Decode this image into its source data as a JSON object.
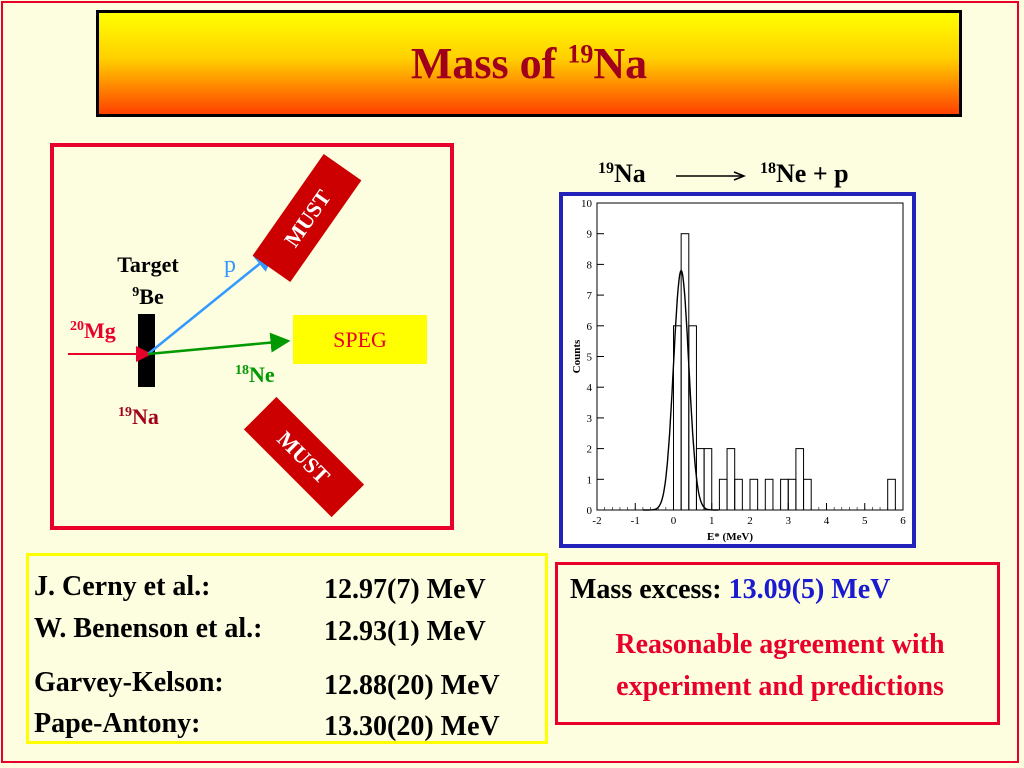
{
  "title": {
    "text": "Mass of ",
    "sup": "19",
    "element": "Na"
  },
  "reaction": {
    "parent_sup": "19",
    "parent": "Na",
    "arrow": "⟶",
    "daughter_sup": "18",
    "daughter": "Ne + p"
  },
  "diagram": {
    "target_label": "Target",
    "target_material_sup": "9",
    "target_material": "Be",
    "beam_sup": "20",
    "beam": "Mg",
    "product_sup": "19",
    "product": "Na",
    "proton_label": "p",
    "recoil_sup": "18",
    "recoil": "Ne",
    "spectrometer": "SPEG",
    "detector_top": "MUST",
    "detector_bottom": "MUST",
    "colors": {
      "frame": "#e8002a",
      "beam": "#e8002a",
      "proton": "#3399ff",
      "recoil": "#009900",
      "spectrometer_fill": "#ffff00",
      "detector_fill": "#cc0000"
    }
  },
  "chart_data": {
    "type": "histogram+fit",
    "xlabel": "E* (MeV)",
    "ylabel": "Counts",
    "xlim": [
      -2,
      6
    ],
    "ylim": [
      0,
      10
    ],
    "x_ticks": [
      -2,
      -1,
      0,
      1,
      2,
      3,
      4,
      5,
      6
    ],
    "y_ticks": [
      0,
      1,
      2,
      3,
      4,
      5,
      6,
      7,
      8,
      9,
      10
    ],
    "bin_width": 0.2,
    "histogram": [
      {
        "x": -0.2,
        "count": 0
      },
      {
        "x": 0.0,
        "count": 6
      },
      {
        "x": 0.2,
        "count": 9
      },
      {
        "x": 0.4,
        "count": 6
      },
      {
        "x": 0.6,
        "count": 2
      },
      {
        "x": 0.8,
        "count": 2
      },
      {
        "x": 1.0,
        "count": 0
      },
      {
        "x": 1.2,
        "count": 1
      },
      {
        "x": 1.4,
        "count": 2
      },
      {
        "x": 1.6,
        "count": 1
      },
      {
        "x": 1.8,
        "count": 0
      },
      {
        "x": 2.0,
        "count": 1
      },
      {
        "x": 2.2,
        "count": 0
      },
      {
        "x": 2.4,
        "count": 1
      },
      {
        "x": 2.6,
        "count": 0
      },
      {
        "x": 2.8,
        "count": 1
      },
      {
        "x": 3.0,
        "count": 1
      },
      {
        "x": 3.2,
        "count": 2
      },
      {
        "x": 3.4,
        "count": 1
      },
      {
        "x": 3.6,
        "count": 0
      },
      {
        "x": 5.6,
        "count": 1
      }
    ],
    "fit": {
      "shape": "gaussian",
      "mean": 0.2,
      "amplitude": 7.8,
      "sigma": 0.2
    }
  },
  "references": [
    {
      "name": "J. Cerny et al.:",
      "value": "12.97(7) MeV"
    },
    {
      "name": "W. Benenson et al.:",
      "value": "12.93(1) MeV"
    },
    {
      "name": "Garvey-Kelson:",
      "value": "12.88(20) MeV"
    },
    {
      "name": "Pape-Antony:",
      "value": "13.30(20) MeV"
    }
  ],
  "result": {
    "label": "Mass excess:",
    "value": "13.09(5) MeV",
    "conclusion_line1": "Reasonable agreement with",
    "conclusion_line2": "experiment and predictions"
  }
}
